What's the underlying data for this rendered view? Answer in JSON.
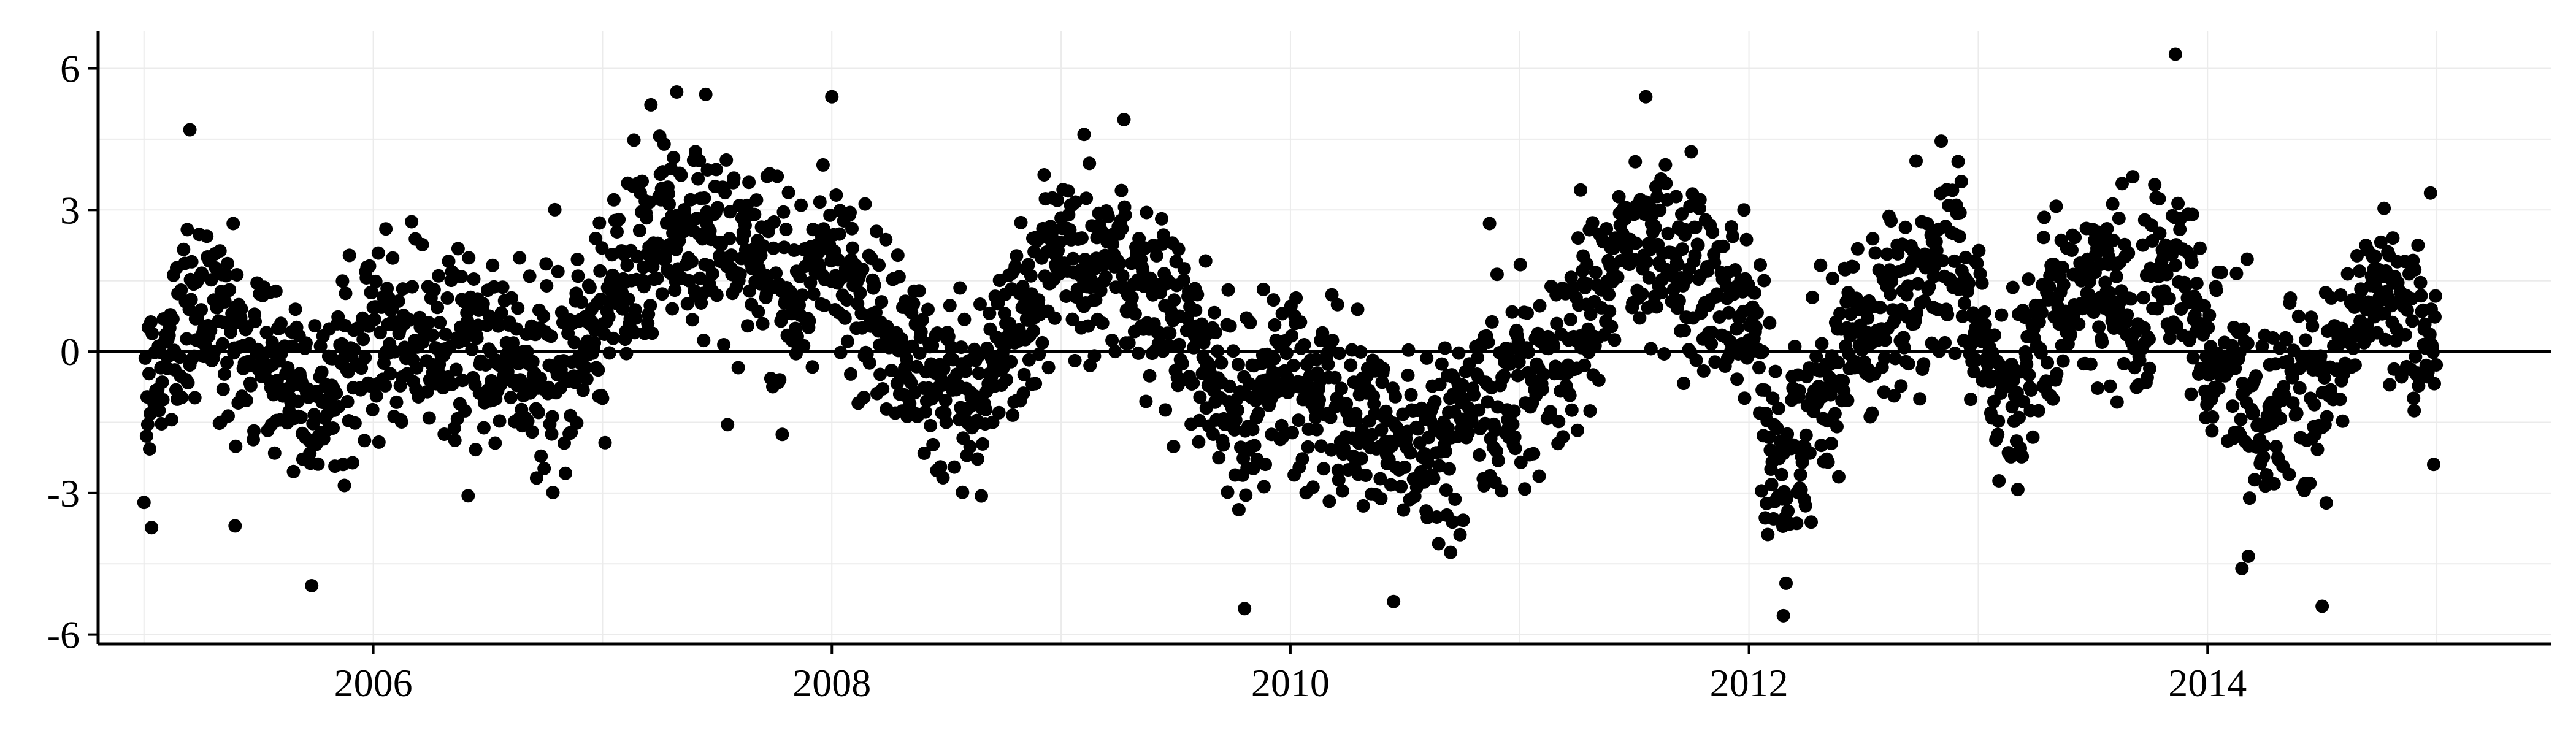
{
  "chart_data": {
    "type": "scatter",
    "title": "",
    "xlabel": "",
    "ylabel": "",
    "xlim": [
      2004.8,
      2015.5
    ],
    "ylim": [
      -6.2,
      6.8
    ],
    "x_ticks": [
      2006,
      2008,
      2010,
      2012,
      2014
    ],
    "x_tick_labels": [
      "2006",
      "2008",
      "2010",
      "2012",
      "2014"
    ],
    "y_ticks": [
      6,
      3,
      0,
      -3,
      -6
    ],
    "y_tick_labels": [
      "6",
      "3",
      "0",
      "-3",
      "-6"
    ],
    "grid": true,
    "reference_line_y": 0,
    "marker_color": "#000000",
    "point_count_note": "daily observations 2005–2014",
    "x_range": [
      2005.0,
      2015.0
    ],
    "trend_knots": [
      [
        2005.0,
        -1.0
      ],
      [
        2005.2,
        1.0
      ],
      [
        2005.5,
        0.0
      ],
      [
        2005.8,
        -1.0
      ],
      [
        2006.0,
        0.3
      ],
      [
        2006.5,
        0.0
      ],
      [
        2006.8,
        -0.5
      ],
      [
        2007.1,
        1.5
      ],
      [
        2007.3,
        2.8
      ],
      [
        2007.6,
        2.2
      ],
      [
        2007.8,
        0.8
      ],
      [
        2008.0,
        2.0
      ],
      [
        2008.3,
        0.0
      ],
      [
        2008.6,
        -1.0
      ],
      [
        2009.0,
        2.0
      ],
      [
        2009.3,
        1.8
      ],
      [
        2009.6,
        0.0
      ],
      [
        2009.8,
        -1.5
      ],
      [
        2010.0,
        -0.5
      ],
      [
        2010.3,
        -1.5
      ],
      [
        2010.6,
        -2.0
      ],
      [
        2010.9,
        -1.0
      ],
      [
        2011.2,
        0.0
      ],
      [
        2011.5,
        2.5
      ],
      [
        2011.8,
        1.5
      ],
      [
        2012.0,
        0.5
      ],
      [
        2012.15,
        -3.0
      ],
      [
        2012.4,
        0.0
      ],
      [
        2012.7,
        1.5
      ],
      [
        2012.9,
        2.0
      ],
      [
        2013.1,
        -1.0
      ],
      [
        2013.3,
        0.5
      ],
      [
        2013.5,
        1.5
      ],
      [
        2013.7,
        1.0
      ],
      [
        2013.9,
        2.0
      ],
      [
        2014.0,
        0.0
      ],
      [
        2014.2,
        -1.5
      ],
      [
        2014.5,
        -0.5
      ],
      [
        2014.8,
        1.5
      ],
      [
        2015.0,
        0.0
      ]
    ],
    "noise_sd": 1.0,
    "highlights": [
      [
        2013.86,
        6.3
      ],
      [
        2008.0,
        5.4
      ],
      [
        2007.45,
        5.45
      ],
      [
        2011.55,
        5.4
      ],
      [
        2012.15,
        -5.6
      ],
      [
        2014.5,
        -5.4
      ],
      [
        2009.8,
        -5.45
      ],
      [
        2010.45,
        -5.3
      ],
      [
        2005.0,
        -3.2
      ],
      [
        2014.15,
        -4.6
      ],
      [
        2005.2,
        4.7
      ],
      [
        2009.1,
        4.6
      ]
    ]
  }
}
